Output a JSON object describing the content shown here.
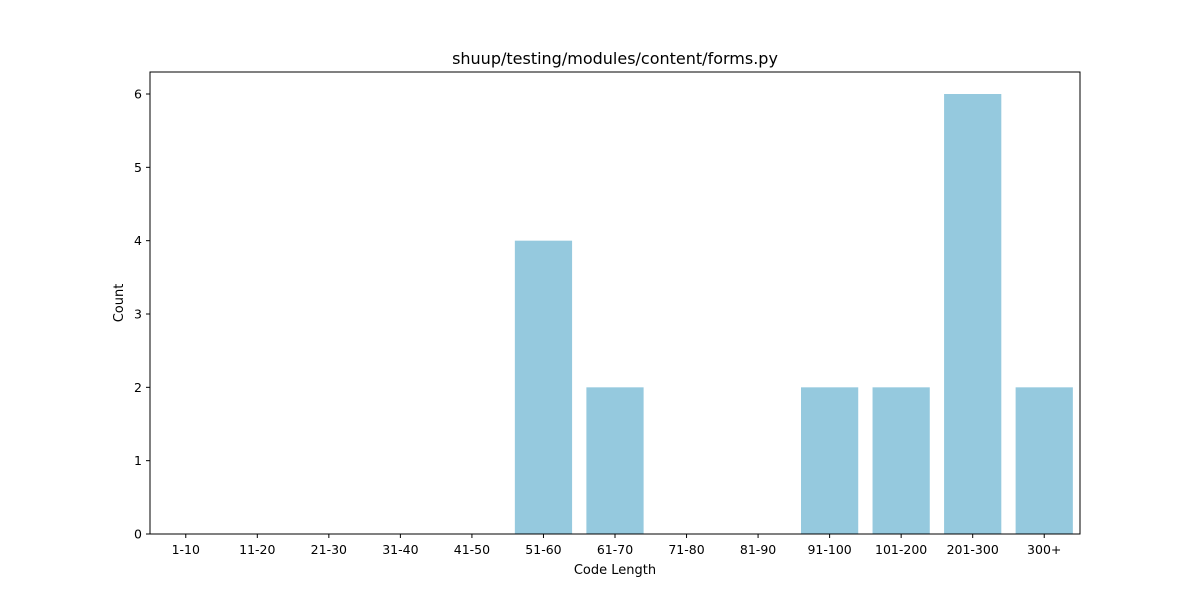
{
  "chart_data": {
    "type": "bar",
    "title": "shuup/testing/modules/content/forms.py",
    "xlabel": "Code Length",
    "ylabel": "Count",
    "categories": [
      "1-10",
      "11-20",
      "21-30",
      "31-40",
      "41-50",
      "51-60",
      "61-70",
      "71-80",
      "81-90",
      "91-100",
      "101-200",
      "201-300",
      "300+"
    ],
    "values": [
      0,
      0,
      0,
      0,
      0,
      4,
      2,
      0,
      0,
      2,
      2,
      6,
      2
    ],
    "ylim": [
      0,
      6.3
    ],
    "yticks": [
      0,
      1,
      2,
      3,
      4,
      5,
      6
    ],
    "grid": false,
    "bar_color": "#95c9de"
  }
}
